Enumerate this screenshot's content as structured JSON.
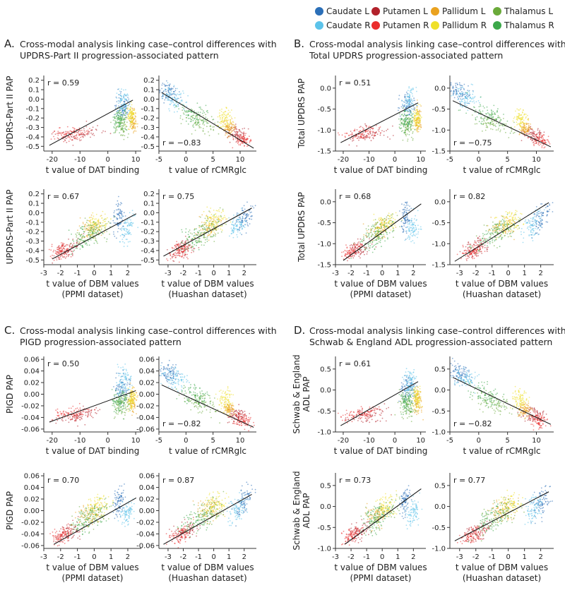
{
  "legend": {
    "items": [
      {
        "label": "Caudate L",
        "color": "#2b6fb8"
      },
      {
        "label": "Putamen L",
        "color": "#b2222b"
      },
      {
        "label": "Pallidum L",
        "color": "#eaa21f"
      },
      {
        "label": "Thalamus L",
        "color": "#6aaa3a"
      },
      {
        "label": "Caudate R",
        "color": "#5cc3ea"
      },
      {
        "label": "Putamen R",
        "color": "#ea2d2d"
      },
      {
        "label": "Pallidum R",
        "color": "#efe029"
      },
      {
        "label": "Thalamus R",
        "color": "#3ca84a"
      }
    ]
  },
  "panels": [
    {
      "letter": "A.",
      "title_lines": [
        "Cross-modal analysis linking case–control differences with",
        "UPDRS-Part II progression-associated pattern"
      ]
    },
    {
      "letter": "B.",
      "title_lines": [
        "Cross-modal analysis linking case–control differences with",
        "Total UPDRS  progression-associated pattern"
      ]
    },
    {
      "letter": "C.",
      "title_lines": [
        "Cross-modal analysis linking case–control differences with",
        "PIGD progression-associated pattern"
      ]
    },
    {
      "letter": "D.",
      "title_lines": [
        "Cross-modal analysis linking case–control differences with",
        "Schwab & England ADL progression-associated pattern"
      ]
    }
  ],
  "chart_data": [
    {
      "panel": "A",
      "type": "scatter",
      "xlabel_lines": [
        "t value of DAT binding"
      ],
      "ylabel_lines": [
        "UPDRS-Part II PAP"
      ],
      "r_label": "r = 0.59",
      "r_pos": "top-left",
      "xlim": [
        -23,
        12
      ],
      "ylim": [
        -0.55,
        0.25
      ],
      "xticks": [
        -20,
        -10,
        0,
        10
      ],
      "yticks": [
        -0.5,
        -0.4,
        -0.3,
        -0.2,
        -0.1,
        0.0,
        0.1,
        0.2
      ],
      "ytick_labels": [
        "-0.5",
        "-0.4",
        "-0.3",
        "-0.2",
        "-0.1",
        "0.0",
        "0.1",
        "0.2"
      ],
      "fit_line": {
        "x": [
          -21,
          9
        ],
        "y": [
          -0.49,
          -0.01
        ]
      }
    },
    {
      "panel": "A",
      "type": "scatter",
      "xlabel_lines": [
        "t value of rCMRglc"
      ],
      "ylabel_lines": [],
      "r_label": "r = −0.83",
      "r_pos": "bottom-left",
      "xlim": [
        -5,
        13
      ],
      "ylim": [
        -0.55,
        0.25
      ],
      "xticks": [
        -5,
        0,
        5,
        10
      ],
      "yticks": [
        -0.5,
        -0.4,
        -0.3,
        -0.2,
        -0.1,
        0.0,
        0.1,
        0.2
      ],
      "ytick_labels": [
        "-0.5",
        "-0.4",
        "-0.3",
        "-0.2",
        "-0.1",
        "0.0",
        "0.1",
        "0.2"
      ],
      "fit_line": {
        "x": [
          -4.5,
          12.5
        ],
        "y": [
          0.07,
          -0.52
        ]
      }
    },
    {
      "panel": "A",
      "type": "scatter",
      "xlabel_lines": [
        "t value of DBM values",
        "(PPMI dataset)"
      ],
      "ylabel_lines": [
        "UPDRS-Part II PAP"
      ],
      "r_label": "r = 0.67",
      "r_pos": "top-left",
      "xlim": [
        -3,
        2.8
      ],
      "ylim": [
        -0.55,
        0.25
      ],
      "xticks": [
        -3,
        -2,
        -1,
        0,
        1,
        2
      ],
      "yticks": [
        -0.5,
        -0.4,
        -0.3,
        -0.2,
        -0.1,
        0.0,
        0.1,
        0.2
      ],
      "ytick_labels": [
        "-0.5",
        "-0.4",
        "-0.3",
        "-0.2",
        "-0.1",
        "0.0",
        "0.1",
        "0.2"
      ],
      "fit_line": {
        "x": [
          -2.5,
          2.5
        ],
        "y": [
          -0.49,
          -0.01
        ]
      }
    },
    {
      "panel": "A",
      "type": "scatter",
      "xlabel_lines": [
        "t value of DBM values",
        "(Huashan dataset)"
      ],
      "ylabel_lines": [],
      "r_label": "r = 0.75",
      "r_pos": "top-left",
      "xlim": [
        -3.6,
        2.8
      ],
      "ylim": [
        -0.55,
        0.25
      ],
      "xticks": [
        -3,
        -2,
        -1,
        0,
        1,
        2
      ],
      "yticks": [
        -0.5,
        -0.4,
        -0.3,
        -0.2,
        -0.1,
        0.0,
        0.1,
        0.2
      ],
      "ytick_labels": [
        "-0.5",
        "-0.4",
        "-0.3",
        "-0.2",
        "-0.1",
        "0.0",
        "0.1",
        "0.2"
      ],
      "fit_line": {
        "x": [
          -3.3,
          2.5
        ],
        "y": [
          -0.46,
          0.05
        ]
      }
    },
    {
      "panel": "B",
      "type": "scatter",
      "xlabel_lines": [
        "t value of DAT binding"
      ],
      "ylabel_lines": [
        "Total UPDRS PAP"
      ],
      "r_label": "r = 0.51",
      "r_pos": "top-left",
      "xlim": [
        -23,
        12
      ],
      "ylim": [
        -1.5,
        0.3
      ],
      "xticks": [
        -20,
        -10,
        0,
        10
      ],
      "yticks": [
        -1.5,
        -1.0,
        -0.5,
        0.0
      ],
      "ytick_labels": [
        "-1.5",
        "-1.0",
        "-0.5",
        "0.0"
      ],
      "fit_line": {
        "x": [
          -21,
          9
        ],
        "y": [
          -1.3,
          -0.35
        ]
      }
    },
    {
      "panel": "B",
      "type": "scatter",
      "xlabel_lines": [
        "t value of rCMRglc"
      ],
      "ylabel_lines": [],
      "r_label": "r = −0.75",
      "r_pos": "bottom-left",
      "xlim": [
        -5,
        13
      ],
      "ylim": [
        -1.5,
        0.3
      ],
      "xticks": [
        -5,
        0,
        5,
        10
      ],
      "yticks": [
        -1.5,
        -1.0,
        -0.5,
        0.0
      ],
      "ytick_labels": [
        "-1.5",
        "-1.0",
        "-0.5",
        "0.0"
      ],
      "fit_line": {
        "x": [
          -4.5,
          12.5
        ],
        "y": [
          -0.3,
          -1.4
        ]
      }
    },
    {
      "panel": "B",
      "type": "scatter",
      "xlabel_lines": [
        "t value of DBM values",
        "(PPMI dataset)"
      ],
      "ylabel_lines": [
        "Total UPDRS PAP"
      ],
      "r_label": "r = 0.68",
      "r_pos": "top-left",
      "xlim": [
        -3,
        2.8
      ],
      "ylim": [
        -1.5,
        0.3
      ],
      "xticks": [
        -3,
        -2,
        -1,
        0,
        1,
        2
      ],
      "yticks": [
        -1.5,
        -1.0,
        -0.5,
        0.0
      ],
      "ytick_labels": [
        "-1.5",
        "-1.0",
        "-0.5",
        "0.0"
      ],
      "fit_line": {
        "x": [
          -2.5,
          2.5
        ],
        "y": [
          -1.4,
          -0.05
        ]
      }
    },
    {
      "panel": "B",
      "type": "scatter",
      "xlabel_lines": [
        "t value of DBM values",
        "(Huashan dataset)"
      ],
      "ylabel_lines": [],
      "r_label": "r = 0.82",
      "r_pos": "top-left",
      "xlim": [
        -3.6,
        2.8
      ],
      "ylim": [
        -1.5,
        0.3
      ],
      "xticks": [
        -3,
        -2,
        -1,
        0,
        1,
        2
      ],
      "yticks": [
        -1.5,
        -1.0,
        -0.5,
        0.0
      ],
      "ytick_labels": [
        "-1.5",
        "-1.0",
        "-0.5",
        "0.0"
      ],
      "fit_line": {
        "x": [
          -3.3,
          2.5
        ],
        "y": [
          -1.42,
          -0.02
        ]
      }
    },
    {
      "panel": "C",
      "type": "scatter",
      "xlabel_lines": [
        "t value of DAT binding"
      ],
      "ylabel_lines": [
        "PIGD PAP"
      ],
      "r_label": "r = 0.50",
      "r_pos": "top-left",
      "xlim": [
        -23,
        12
      ],
      "ylim": [
        -0.065,
        0.065
      ],
      "xticks": [
        -20,
        -10,
        0,
        10
      ],
      "yticks": [
        -0.06,
        -0.04,
        -0.02,
        0.0,
        0.02,
        0.04,
        0.06
      ],
      "ytick_labels": [
        "-0.06",
        "-0.04",
        "-0.02",
        "0.00",
        "0.02",
        "0.04",
        "0.06"
      ],
      "fit_line": {
        "x": [
          -21,
          10
        ],
        "y": [
          -0.048,
          0.006
        ]
      }
    },
    {
      "panel": "C",
      "type": "scatter",
      "xlabel_lines": [
        "t value of rCMRglc"
      ],
      "ylabel_lines": [],
      "r_label": "r = −0.82",
      "r_pos": "bottom-left",
      "xlim": [
        -5,
        13
      ],
      "ylim": [
        -0.065,
        0.065
      ],
      "xticks": [
        -5,
        0,
        5,
        10
      ],
      "yticks": [
        -0.06,
        -0.04,
        -0.02,
        0.0,
        0.02,
        0.04,
        0.06
      ],
      "ytick_labels": [
        "-0.06",
        "-0.04",
        "-0.02",
        "0.00",
        "0.02",
        "0.04",
        "0.06"
      ],
      "fit_line": {
        "x": [
          -4.5,
          12.5
        ],
        "y": [
          0.016,
          -0.057
        ]
      }
    },
    {
      "panel": "C",
      "type": "scatter",
      "xlabel_lines": [
        "t value of DBM values",
        "(PPMI dataset)"
      ],
      "ylabel_lines": [
        "PIGD PAP"
      ],
      "r_label": "r = 0.70",
      "r_pos": "top-left",
      "xlim": [
        -3,
        2.8
      ],
      "ylim": [
        -0.065,
        0.065
      ],
      "xticks": [
        -3,
        -2,
        -1,
        0,
        1,
        2
      ],
      "yticks": [
        -0.06,
        -0.04,
        -0.02,
        0.0,
        0.02,
        0.04,
        0.06
      ],
      "ytick_labels": [
        "-0.06",
        "-0.04",
        "-0.02",
        "0.00",
        "0.02",
        "0.04",
        "0.06"
      ],
      "fit_line": {
        "x": [
          -2.4,
          2.5
        ],
        "y": [
          -0.058,
          0.022
        ]
      }
    },
    {
      "panel": "C",
      "type": "scatter",
      "xlabel_lines": [
        "t value of DBM values",
        "(Huashan dataset)"
      ],
      "ylabel_lines": [],
      "r_label": "r = 0.87",
      "r_pos": "top-left",
      "xlim": [
        -3.6,
        2.8
      ],
      "ylim": [
        -0.065,
        0.065
      ],
      "xticks": [
        -3,
        -2,
        -1,
        0,
        1,
        2
      ],
      "yticks": [
        -0.06,
        -0.04,
        -0.02,
        0.0,
        0.02,
        0.04,
        0.06
      ],
      "ytick_labels": [
        "-0.06",
        "-0.04",
        "-0.02",
        "0.00",
        "0.02",
        "0.04",
        "0.06"
      ],
      "fit_line": {
        "x": [
          -3.3,
          2.5
        ],
        "y": [
          -0.058,
          0.028
        ]
      }
    },
    {
      "panel": "D",
      "type": "scatter",
      "xlabel_lines": [
        "t value of DAT binding"
      ],
      "ylabel_lines": [
        "Schwab & England",
        "ADL PAP"
      ],
      "r_label": "r = 0.61",
      "r_pos": "top-left",
      "xlim": [
        -23,
        12
      ],
      "ylim": [
        -1.0,
        0.8
      ],
      "xticks": [
        -20,
        -10,
        0,
        10
      ],
      "yticks": [
        -1.0,
        -0.5,
        0.0,
        0.5
      ],
      "ytick_labels": [
        "-1.0",
        "-0.5",
        "0.0",
        "0.5"
      ],
      "fit_line": {
        "x": [
          -21,
          9
        ],
        "y": [
          -0.85,
          0.2
        ]
      }
    },
    {
      "panel": "D",
      "type": "scatter",
      "xlabel_lines": [
        "t value of rCMRglc"
      ],
      "ylabel_lines": [],
      "r_label": "r = −0.82",
      "r_pos": "bottom-left",
      "xlim": [
        -5,
        13
      ],
      "ylim": [
        -1.0,
        0.8
      ],
      "xticks": [
        -5,
        0,
        5,
        10
      ],
      "yticks": [
        -1.0,
        -0.5,
        0.0,
        0.5
      ],
      "ytick_labels": [
        "-1.0",
        "-0.5",
        "0.0",
        "0.5"
      ],
      "fit_line": {
        "x": [
          -4.5,
          12.5
        ],
        "y": [
          0.3,
          -0.82
        ]
      }
    },
    {
      "panel": "D",
      "type": "scatter",
      "xlabel_lines": [
        "t value of DBM values",
        "(PPMI dataset)"
      ],
      "ylabel_lines": [
        "Schwab & England",
        "ADL PAP"
      ],
      "r_label": "r = 0.73",
      "r_pos": "top-left",
      "xlim": [
        -3,
        2.8
      ],
      "ylim": [
        -1.0,
        0.8
      ],
      "xticks": [
        -3,
        -2,
        -1,
        0,
        1,
        2
      ],
      "yticks": [
        -1.0,
        -0.5,
        0.0,
        0.5
      ],
      "ytick_labels": [
        "-1.0",
        "-0.5",
        "0.0",
        "0.5"
      ],
      "fit_line": {
        "x": [
          -2.4,
          2.5
        ],
        "y": [
          -0.9,
          0.42
        ]
      }
    },
    {
      "panel": "D",
      "type": "scatter",
      "xlabel_lines": [
        "t value of DBM values",
        "(Huashan dataset)"
      ],
      "ylabel_lines": [],
      "r_label": "r = 0.77",
      "r_pos": "top-left",
      "xlim": [
        -3.6,
        2.8
      ],
      "ylim": [
        -1.0,
        0.8
      ],
      "xticks": [
        -3,
        -2,
        -1,
        0,
        1,
        2
      ],
      "yticks": [
        -1.0,
        -0.5,
        0.0,
        0.5
      ],
      "ytick_labels": [
        "-1.0",
        "-0.5",
        "0.0",
        "0.5"
      ],
      "fit_line": {
        "x": [
          -3.3,
          2.5
        ],
        "y": [
          -0.82,
          0.35
        ]
      }
    }
  ]
}
